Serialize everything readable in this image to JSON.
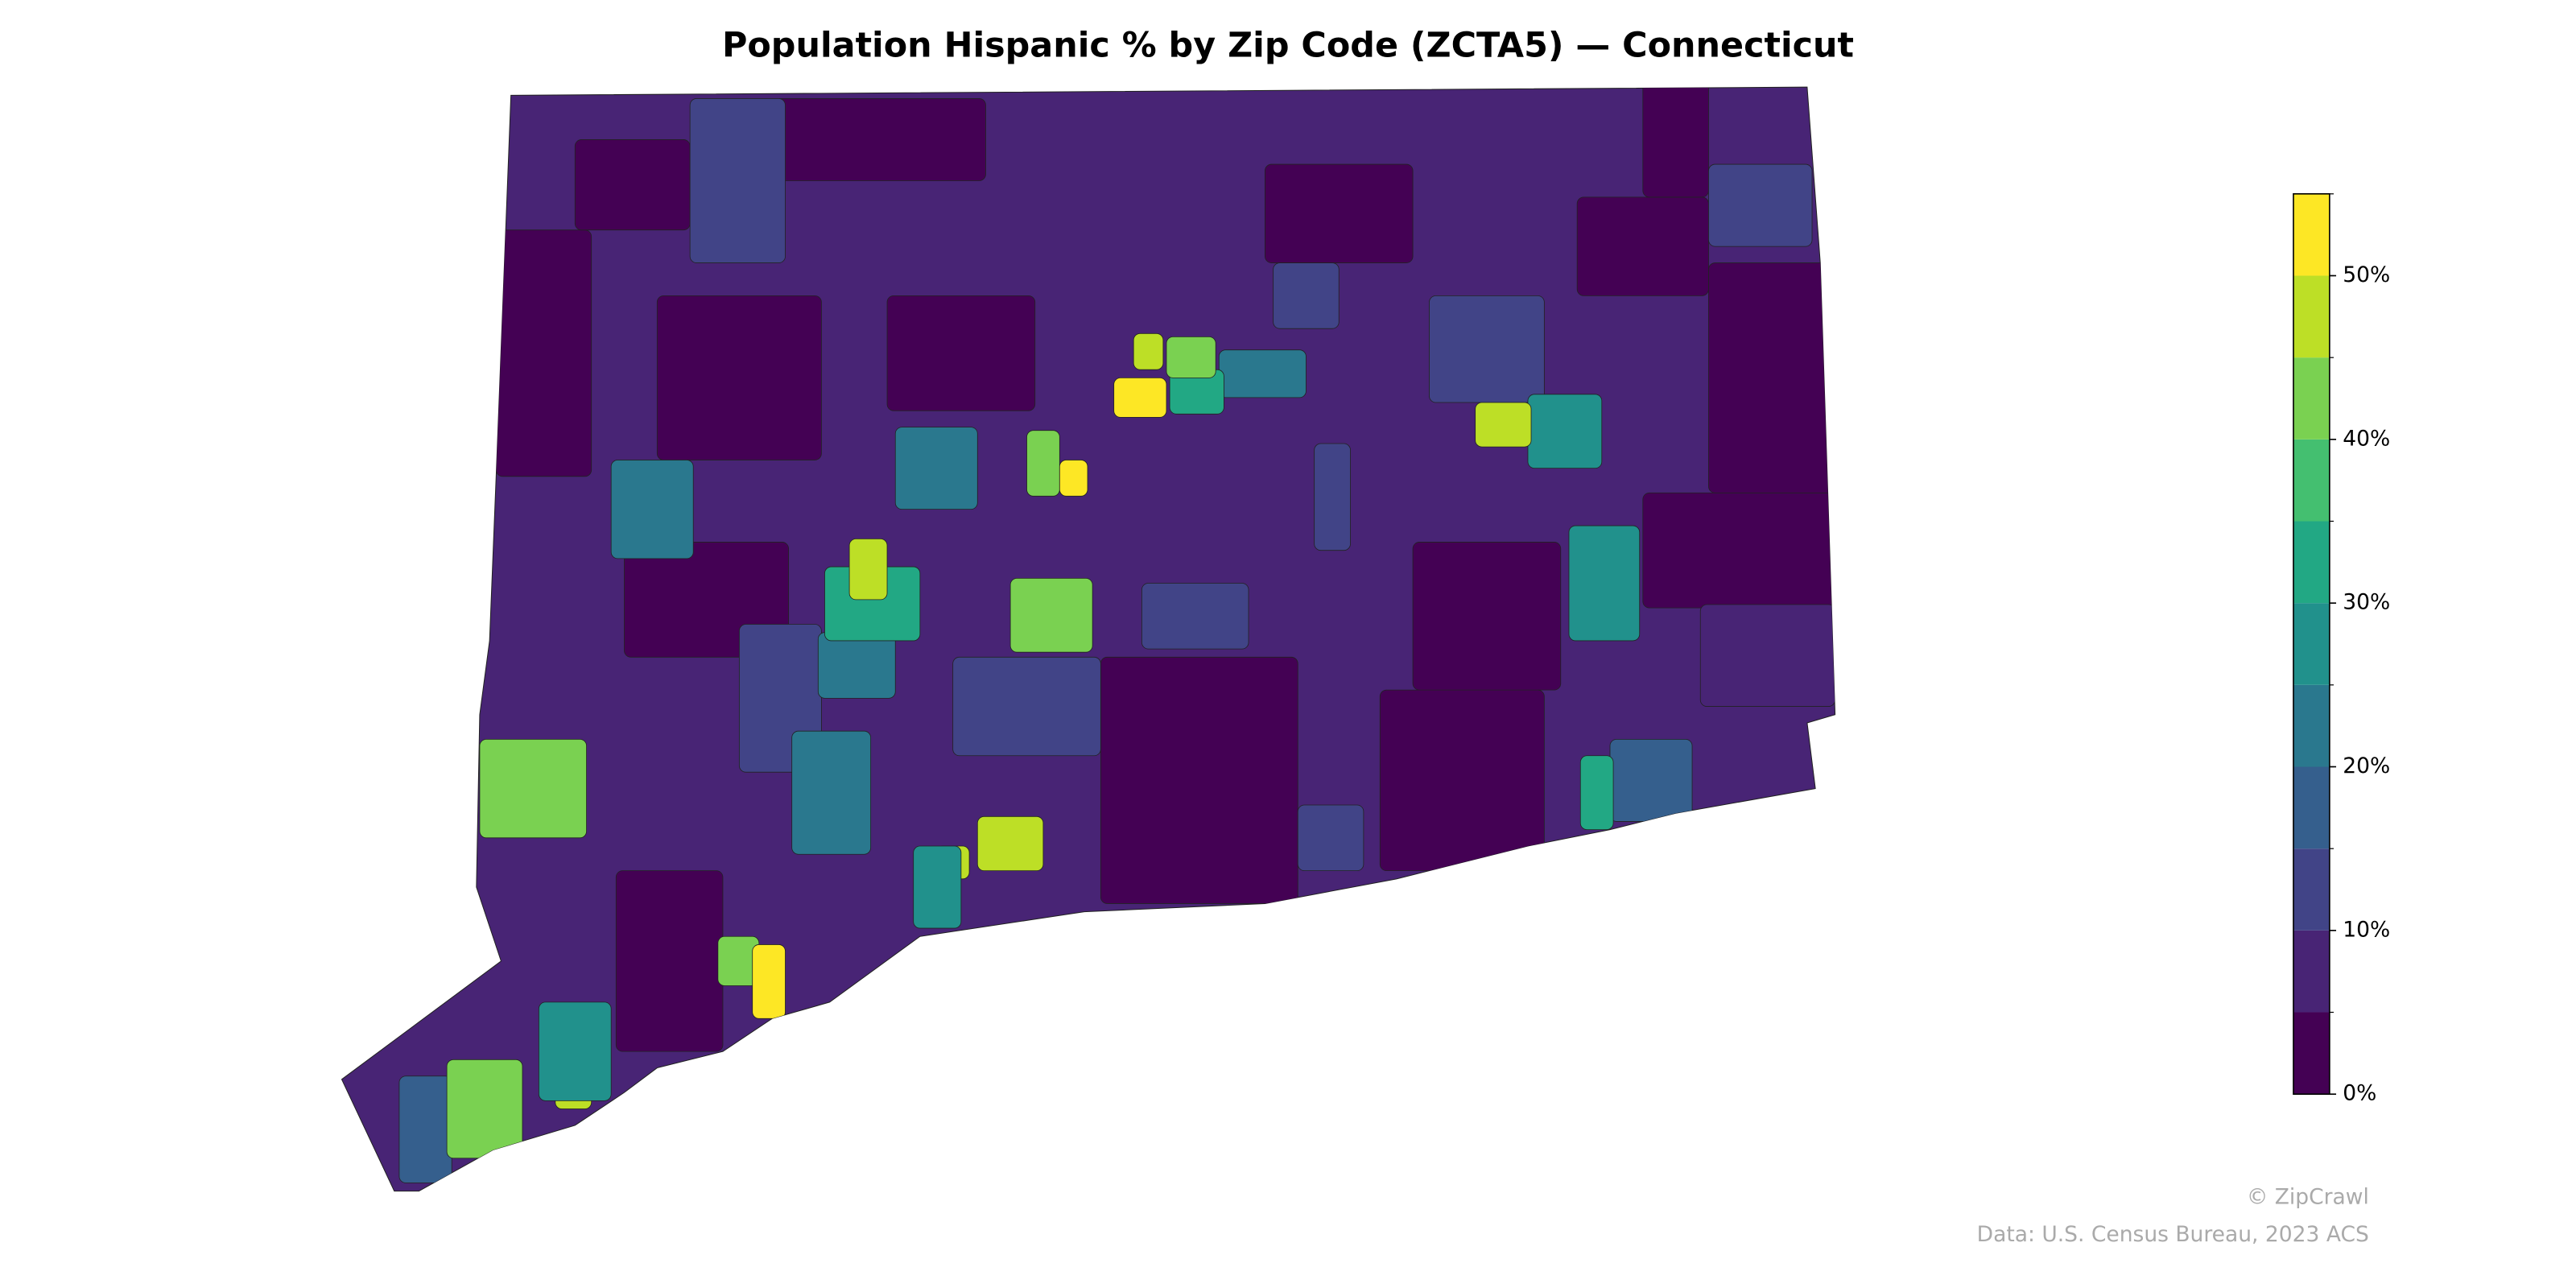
{
  "chart_data": {
    "type": "choropleth",
    "title": "Population Hispanic % by Zip Code (ZCTA5) — Connecticut",
    "values": [
      53,
      48,
      42,
      33,
      20,
      53,
      40,
      48,
      32,
      42,
      48,
      28,
      28,
      32,
      40,
      28,
      48,
      48,
      52,
      40,
      26,
      45,
      40,
      18,
      24,
      20,
      14,
      13,
      20,
      22,
      13,
      14,
      12,
      12,
      9,
      3,
      13,
      13,
      16,
      14,
      2,
      2,
      2,
      2,
      2,
      2,
      2,
      2,
      2,
      2,
      2,
      2,
      2,
      2
    ],
    "clim": [
      0,
      55
    ],
    "bounds": [
      0,
      5,
      10,
      15,
      20,
      25,
      30,
      35,
      40,
      45,
      50,
      55
    ],
    "colors": [
      "#440154",
      "#482475",
      "#414487",
      "#355f8d",
      "#2a788e",
      "#21918c",
      "#22a884",
      "#44bf70",
      "#7ad151",
      "#bddf26",
      "#fde725"
    ],
    "cticks": [
      {
        "value": 0,
        "label": "0%"
      },
      {
        "value": 10,
        "label": "10%"
      },
      {
        "value": 20,
        "label": "20%"
      },
      {
        "value": 30,
        "label": "30%"
      },
      {
        "value": 40,
        "label": "40%"
      },
      {
        "value": 50,
        "label": "50%"
      }
    ],
    "credit": "© ZipCrawl",
    "source": "Data: U.S. Census Bureau, 2023 ACS"
  }
}
